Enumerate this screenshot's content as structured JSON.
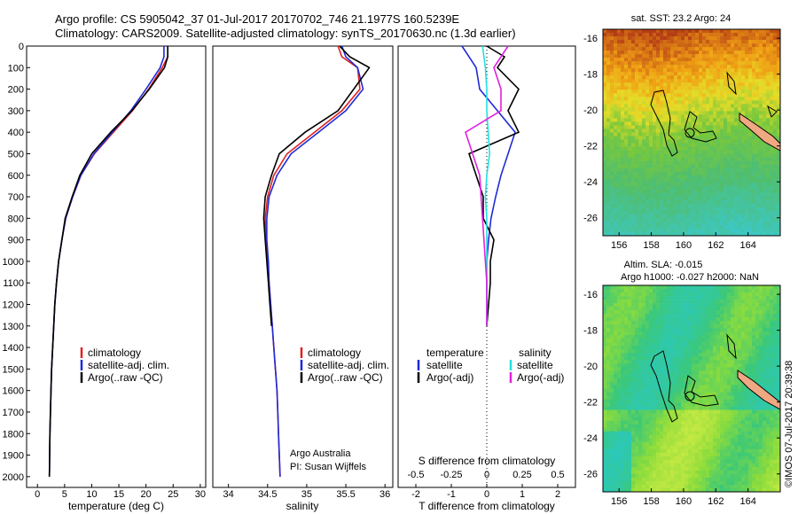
{
  "header": {
    "line1": "Argo profile: CS 5905042_37 01-Jul-2017 20170702_746 21.1977S 160.5239E",
    "line2": "Climatology: CARS2009. Satellite-adjusted climatology: synTS_20170630.nc (1.3d earlier)"
  },
  "depth_ticks": [
    "0",
    "100",
    "200",
    "300",
    "400",
    "500",
    "600",
    "700",
    "800",
    "900",
    "1000",
    "1100",
    "1200",
    "1300",
    "1400",
    "1500",
    "1600",
    "1700",
    "1800",
    "1900",
    "2000"
  ],
  "colors": {
    "climatology": "#e02020",
    "satellite": "#1f2bd6",
    "argo": "#000000",
    "satellite_salinity": "#22e0e0",
    "argo_salinity": "#e020e0"
  },
  "temp_panel": {
    "xlabel": "temperature (deg C)",
    "xticks": [
      "0",
      "5",
      "10",
      "15",
      "20",
      "25",
      "30"
    ],
    "legend": [
      "climatology",
      "satellite-adj. clim.",
      "Argo(..raw -QC)"
    ]
  },
  "sal_panel": {
    "xlabel": "salinity",
    "xticks": [
      "34",
      "34.5",
      "35",
      "35.5",
      "36"
    ],
    "legend": [
      "climatology",
      "satellite-adj. clim.",
      "Argo(..raw -QC)"
    ],
    "credit1": "Argo Australia",
    "credit2": "PI: Susan Wijffels"
  },
  "diff_panel": {
    "xlabel": "T difference from climatology",
    "xticks": [
      "-2",
      "-1",
      "0",
      "1",
      "2"
    ],
    "top_title": "S difference from climatology",
    "top_ticks": [
      "-0.5",
      "-0.25",
      "0",
      "0.25",
      "0.5"
    ],
    "legend_left_title": "temperature",
    "legend_left": [
      "satellite",
      "Argo(-adj)"
    ],
    "legend_right_title": "salinity",
    "legend_right": [
      "satellite",
      "Argo(-adj)"
    ]
  },
  "map_sst": {
    "title": "sat. SST: 23.2  Argo: 24",
    "xticks": [
      "156",
      "158",
      "160",
      "162",
      "164"
    ],
    "yticks": [
      "-16",
      "-18",
      "-20",
      "-22",
      "-24",
      "-26"
    ]
  },
  "map_sla": {
    "title1": "Altim. SLA: -0.015",
    "title2": "Argo h1000: -0.027  h2000: NaN",
    "xticks": [
      "156",
      "158",
      "160",
      "162",
      "164"
    ],
    "yticks": [
      "-16",
      "-18",
      "-20",
      "-22",
      "-24",
      "-26"
    ]
  },
  "timestamp": "©IMOS 07-Jul-2017 20:39:38",
  "chart_data": [
    {
      "type": "line",
      "xlabel": "temperature (deg C)",
      "ylabel": "",
      "xlim": [
        -2,
        31
      ],
      "ylim": [
        2050,
        0
      ],
      "series": [
        {
          "name": "climatology",
          "x": [
            24.0,
            24.0,
            23.0,
            20.5,
            17.5,
            14.0,
            10.5,
            8.0,
            6.5,
            5.2,
            4.5,
            3.9,
            3.5,
            3.2,
            3.0,
            2.8,
            2.6,
            2.5,
            2.4,
            2.3,
            2.2
          ],
          "y": [
            0,
            50,
            100,
            200,
            300,
            400,
            500,
            600,
            700,
            800,
            900,
            1000,
            1100,
            1200,
            1300,
            1400,
            1500,
            1600,
            1700,
            1800,
            2000
          ]
        },
        {
          "name": "satellite-adj. clim.",
          "x": [
            23.3,
            23.3,
            22.6,
            20.0,
            17.2,
            13.8,
            10.4,
            8.0,
            6.5,
            5.2,
            4.5,
            3.9,
            3.5,
            3.2,
            3.0,
            2.8,
            2.6,
            2.5,
            2.4,
            2.3,
            2.2
          ],
          "y": [
            0,
            50,
            100,
            200,
            300,
            400,
            500,
            600,
            700,
            800,
            900,
            1000,
            1100,
            1200,
            1300,
            1400,
            1500,
            1600,
            1700,
            1800,
            2000
          ]
        },
        {
          "name": "Argo(..raw -QC)",
          "x": [
            24.0,
            24.0,
            23.4,
            20.6,
            17.4,
            13.5,
            10.0,
            7.8,
            6.4,
            5.1,
            4.5,
            3.9,
            3.5,
            3.2,
            3.0,
            2.8,
            2.6,
            2.5,
            2.4,
            2.3,
            2.2
          ],
          "y": [
            0,
            50,
            100,
            200,
            300,
            400,
            500,
            600,
            700,
            800,
            900,
            1000,
            1100,
            1200,
            1300,
            1400,
            1500,
            1600,
            1700,
            1800,
            2000
          ]
        }
      ]
    },
    {
      "type": "line",
      "xlabel": "salinity",
      "ylabel": "",
      "xlim": [
        33.8,
        36.1
      ],
      "ylim": [
        2050,
        0
      ],
      "series": [
        {
          "name": "climatology",
          "x": [
            35.4,
            35.45,
            35.65,
            35.68,
            35.45,
            35.1,
            34.75,
            34.58,
            34.5,
            34.47,
            34.48,
            34.5,
            34.52,
            34.54,
            34.56,
            34.58,
            34.6,
            34.62,
            34.63,
            34.64,
            34.66
          ],
          "y": [
            0,
            50,
            100,
            200,
            300,
            400,
            500,
            600,
            700,
            800,
            900,
            1000,
            1100,
            1200,
            1300,
            1400,
            1500,
            1600,
            1700,
            1800,
            2000
          ]
        },
        {
          "name": "satellite-adj. clim.",
          "x": [
            35.45,
            35.5,
            35.65,
            35.72,
            35.5,
            35.15,
            34.8,
            34.62,
            34.52,
            34.49,
            34.49,
            34.51,
            34.52,
            34.54,
            34.56,
            34.58,
            34.6,
            34.62,
            34.63,
            34.64,
            34.66
          ],
          "y": [
            0,
            50,
            100,
            200,
            300,
            400,
            500,
            600,
            700,
            800,
            900,
            1000,
            1100,
            1200,
            1300,
            1400,
            1500,
            1600,
            1700,
            1800,
            2000
          ]
        },
        {
          "name": "Argo(..raw -QC)",
          "x": [
            35.42,
            35.55,
            35.8,
            35.6,
            35.4,
            34.98,
            34.65,
            34.55,
            34.47,
            34.45,
            34.47,
            34.49,
            34.51,
            34.53,
            34.55
          ],
          "y": [
            0,
            50,
            100,
            200,
            300,
            400,
            500,
            600,
            700,
            800,
            900,
            1000,
            1100,
            1200,
            1300
          ]
        }
      ]
    },
    {
      "type": "line",
      "xlabel": "T difference from climatology",
      "ylabel": "",
      "xlim": [
        -2.5,
        2.5
      ],
      "ylim": [
        2050,
        0
      ],
      "series": [
        {
          "name": "satellite",
          "x": [
            -0.7,
            -0.5,
            -0.3,
            -0.2,
            0.3,
            0.8,
            0.6,
            0.4,
            0.25,
            0.12,
            0.05,
            0.0,
            0.0,
            0.0,
            0.0
          ],
          "y": [
            0,
            50,
            100,
            200,
            300,
            400,
            500,
            600,
            700,
            800,
            900,
            1000,
            1100,
            1200,
            1300
          ]
        },
        {
          "name": "Argo(-adj)",
          "x": [
            0.0,
            0.5,
            0.3,
            0.9,
            0.6,
            0.9,
            -0.5,
            -0.3,
            -0.1,
            -0.1,
            0.2,
            0.1,
            0.1,
            0.05,
            0.0
          ],
          "y": [
            0,
            50,
            100,
            200,
            300,
            400,
            500,
            600,
            700,
            800,
            900,
            1000,
            1100,
            1200,
            1300
          ]
        }
      ]
    },
    {
      "type": "line",
      "xlabel": "S difference from climatology",
      "ylabel": "",
      "xlim": [
        -0.625,
        0.625
      ],
      "ylim": [
        2050,
        0
      ],
      "series": [
        {
          "name": "satellite",
          "x": [
            -0.03,
            -0.02,
            -0.01,
            0.0,
            0.0,
            0.01,
            0.02,
            0.0,
            -0.01,
            0.0,
            0.0,
            0.0,
            0.0,
            0.0,
            0.0
          ],
          "y": [
            0,
            50,
            100,
            200,
            300,
            400,
            500,
            600,
            700,
            800,
            900,
            1000,
            1100,
            1200,
            1300
          ]
        },
        {
          "name": "Argo(-adj)",
          "x": [
            0.15,
            0.1,
            0.05,
            0.1,
            0.1,
            -0.15,
            -0.1,
            -0.05,
            -0.04,
            -0.03,
            -0.02,
            -0.01,
            0.0,
            0.0,
            0.0
          ],
          "y": [
            0,
            50,
            100,
            200,
            300,
            400,
            500,
            600,
            700,
            800,
            900,
            1000,
            1100,
            1200,
            1300
          ]
        }
      ]
    },
    {
      "type": "heatmap",
      "title": "sat. SST: 23.2  Argo: 24",
      "xlim": [
        155,
        166
      ],
      "ylim": [
        -27,
        -15.5
      ],
      "xticks": [
        156,
        158,
        160,
        162,
        164
      ],
      "yticks": [
        -16,
        -18,
        -20,
        -22,
        -24,
        -26
      ]
    },
    {
      "type": "heatmap",
      "title": "Altim. SLA: -0.015  Argo h1000: -0.027  h2000: NaN",
      "xlim": [
        155,
        166
      ],
      "ylim": [
        -27,
        -15.5
      ],
      "xticks": [
        156,
        158,
        160,
        162,
        164
      ],
      "yticks": [
        -16,
        -18,
        -20,
        -22,
        -24,
        -26
      ]
    }
  ]
}
